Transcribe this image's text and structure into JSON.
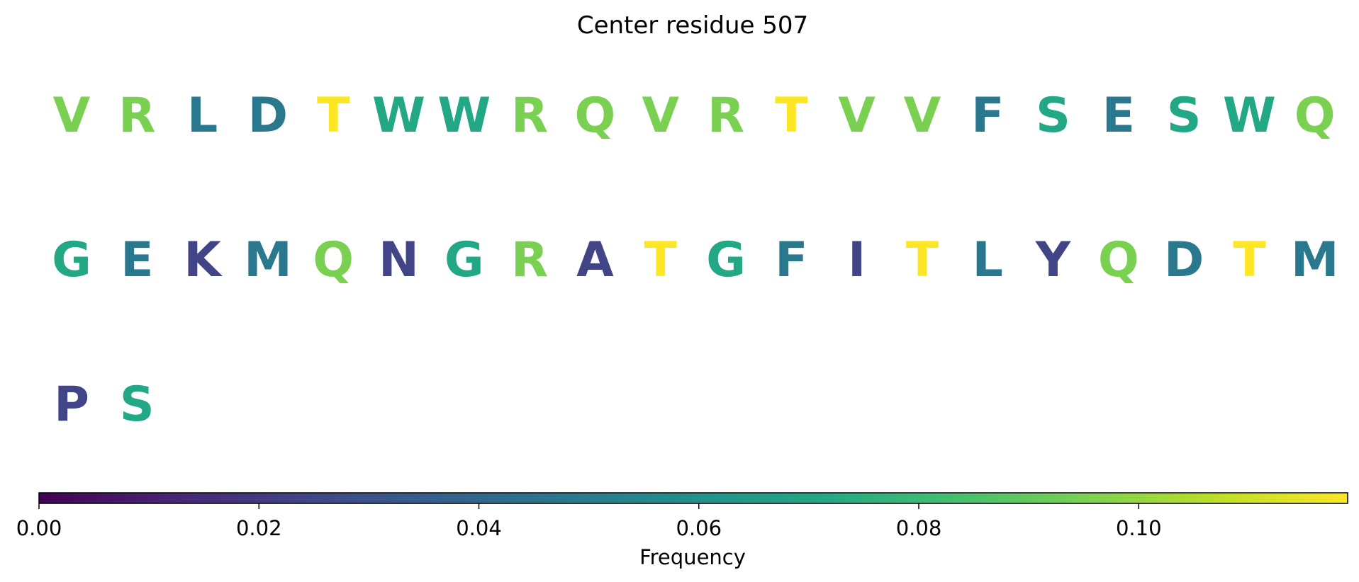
{
  "chart_data": {
    "type": "other",
    "title": "Center residue 507",
    "letters": [
      {
        "char": "V",
        "color": "#7ad151"
      },
      {
        "char": "R",
        "color": "#7ad151"
      },
      {
        "char": "L",
        "color": "#2a788e"
      },
      {
        "char": "D",
        "color": "#2a788e"
      },
      {
        "char": "T",
        "color": "#fde725"
      },
      {
        "char": "W",
        "color": "#22a884"
      },
      {
        "char": "W",
        "color": "#22a884"
      },
      {
        "char": "R",
        "color": "#7ad151"
      },
      {
        "char": "Q",
        "color": "#7ad151"
      },
      {
        "char": "V",
        "color": "#7ad151"
      },
      {
        "char": "R",
        "color": "#7ad151"
      },
      {
        "char": "T",
        "color": "#fde725"
      },
      {
        "char": "V",
        "color": "#7ad151"
      },
      {
        "char": "V",
        "color": "#7ad151"
      },
      {
        "char": "F",
        "color": "#2a788e"
      },
      {
        "char": "S",
        "color": "#22a884"
      },
      {
        "char": "E",
        "color": "#2a788e"
      },
      {
        "char": "S",
        "color": "#22a884"
      },
      {
        "char": "W",
        "color": "#22a884"
      },
      {
        "char": "Q",
        "color": "#7ad151"
      },
      {
        "char": "G",
        "color": "#22a884"
      },
      {
        "char": "E",
        "color": "#2a788e"
      },
      {
        "char": "K",
        "color": "#414487"
      },
      {
        "char": "M",
        "color": "#2a788e"
      },
      {
        "char": "Q",
        "color": "#7ad151"
      },
      {
        "char": "N",
        "color": "#414487"
      },
      {
        "char": "G",
        "color": "#22a884"
      },
      {
        "char": "R",
        "color": "#7ad151"
      },
      {
        "char": "A",
        "color": "#414487"
      },
      {
        "char": "T",
        "color": "#fde725"
      },
      {
        "char": "G",
        "color": "#22a884"
      },
      {
        "char": "F",
        "color": "#2a788e"
      },
      {
        "char": "I",
        "color": "#414487"
      },
      {
        "char": "T",
        "color": "#fde725"
      },
      {
        "char": "L",
        "color": "#2a788e"
      },
      {
        "char": "Y",
        "color": "#414487"
      },
      {
        "char": "Q",
        "color": "#7ad151"
      },
      {
        "char": "D",
        "color": "#2a788e"
      },
      {
        "char": "T",
        "color": "#fde725"
      },
      {
        "char": "M",
        "color": "#2a788e"
      },
      {
        "char": "P",
        "color": "#414487"
      },
      {
        "char": "S",
        "color": "#22a884"
      }
    ],
    "colorbar": {
      "label": "Frequency",
      "range": [
        0.0,
        0.119
      ],
      "ticks": [
        0.0,
        0.02,
        0.04,
        0.06,
        0.08,
        0.1
      ],
      "tick_labels": [
        "0.00",
        "0.02",
        "0.04",
        "0.06",
        "0.08",
        "0.10"
      ],
      "colormap": "viridis",
      "orientation": "horizontal"
    }
  }
}
